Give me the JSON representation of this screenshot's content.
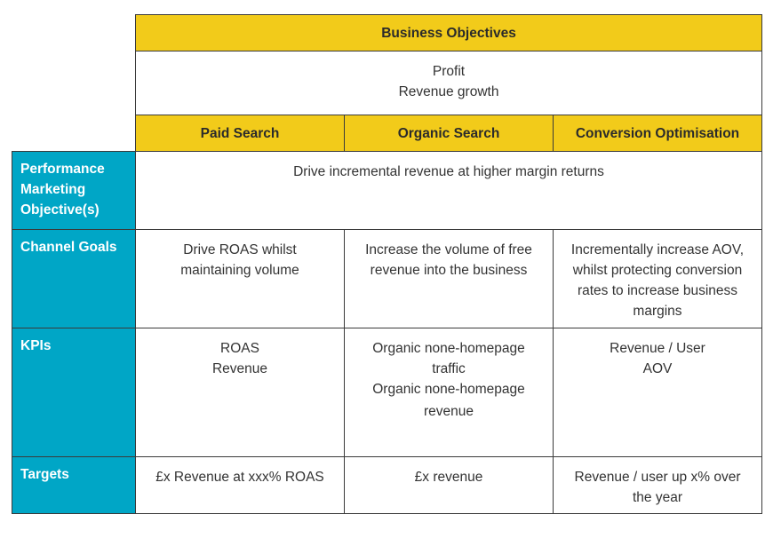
{
  "header": {
    "business_objectives_title": "Business Objectives",
    "business_objectives_lines": [
      "Profit",
      "Revenue growth"
    ]
  },
  "columns": [
    "Paid Search",
    "Organic Search",
    "Conversion Optimisation"
  ],
  "rows": {
    "performance": {
      "label_lines": [
        "Performance",
        "Marketing",
        "Objective(s)"
      ],
      "value": "Drive incremental revenue at higher margin returns"
    },
    "channel_goals": {
      "label": "Channel Goals",
      "cells": [
        [
          "Drive ROAS whilst",
          "maintaining volume"
        ],
        [
          "Increase the volume of free",
          "revenue into the business"
        ],
        [
          "Incrementally increase AOV,",
          "whilst protecting conversion",
          "rates to increase business",
          "margins"
        ]
      ]
    },
    "kpis": {
      "label": "KPIs",
      "cells": [
        [
          "ROAS",
          "Revenue"
        ],
        [
          "Organic none-homepage",
          "traffic",
          "Organic none-homepage",
          "revenue"
        ],
        [
          "Revenue / User",
          "AOV"
        ]
      ]
    },
    "targets": {
      "label": "Targets",
      "cells": [
        [
          "£x Revenue at xxx% ROAS"
        ],
        [
          "£x revenue"
        ],
        [
          "Revenue / user up x% over",
          "the year"
        ]
      ]
    }
  },
  "colors": {
    "yellow": "#f2cb1a",
    "teal": "#00a6c6",
    "border": "#3a3a3a"
  }
}
